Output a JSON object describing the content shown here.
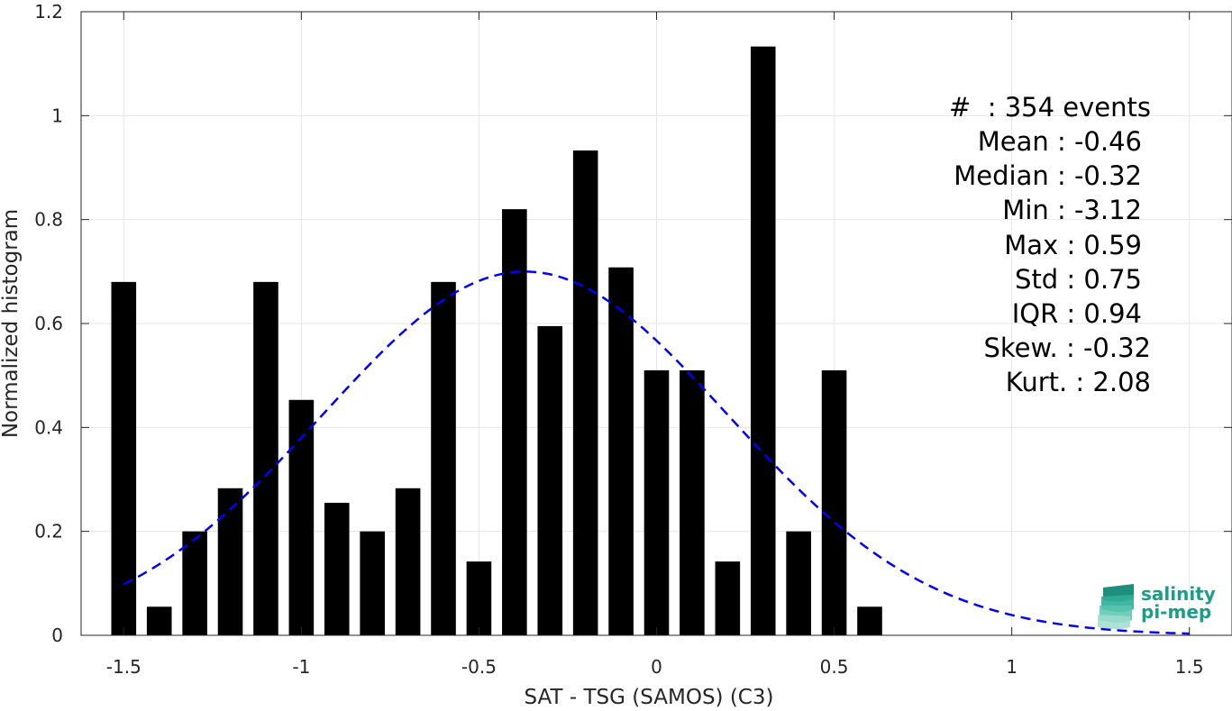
{
  "chart_data": {
    "type": "bar",
    "title": "",
    "xlabel": "SAT - TSG (SAMOS) (C3)",
    "ylabel": "Normalized histogram",
    "xlim": [
      -1.62,
      1.62
    ],
    "ylim": [
      0,
      1.2
    ],
    "grid": true,
    "x_ticks": [
      -1.5,
      -1,
      -0.5,
      0,
      0.5,
      1,
      1.5
    ],
    "x_tick_labels": [
      "-1.5",
      "-1",
      "-0.5",
      "0",
      "0.5",
      "1",
      "1.5"
    ],
    "y_ticks": [
      0,
      0.2,
      0.4,
      0.6,
      0.8,
      1,
      1.2
    ],
    "y_tick_labels": [
      "0",
      "0.2",
      "0.4",
      "0.6",
      "0.8",
      "1",
      "1.2"
    ],
    "bar_width": 0.07,
    "bar_color": "#000000",
    "x": [
      -1.5,
      -1.4,
      -1.3,
      -1.2,
      -1.1,
      -1.0,
      -0.9,
      -0.8,
      -0.7,
      -0.6,
      -0.5,
      -0.4,
      -0.3,
      -0.2,
      -0.1,
      0.0,
      0.1,
      0.2,
      0.3,
      0.4,
      0.5,
      0.6
    ],
    "values": [
      0.68,
      0.055,
      0.2,
      0.283,
      0.68,
      0.453,
      0.255,
      0.2,
      0.283,
      0.68,
      0.142,
      0.82,
      0.595,
      0.933,
      0.708,
      0.51,
      0.51,
      0.142,
      1.133,
      0.2,
      0.51,
      0.055
    ],
    "fit_curve": {
      "type": "normal",
      "mean": -0.37,
      "std": 0.57,
      "peak": 0.7,
      "x_range": [
        -1.5,
        1.5
      ],
      "color": "#0000ff",
      "style": "dashed"
    },
    "stats_lines": [
      "#  : 354 events",
      "Mean : -0.46",
      "Median : -0.32",
      "Min : -3.12",
      "Max : 0.59",
      "Std : 0.75",
      "IQR : 0.94",
      "Skew. : -0.32",
      "Kurt. : 2.08"
    ]
  },
  "logo": {
    "line1": "salinity",
    "line2": "pi-mep",
    "color": "#1a9e8a"
  }
}
